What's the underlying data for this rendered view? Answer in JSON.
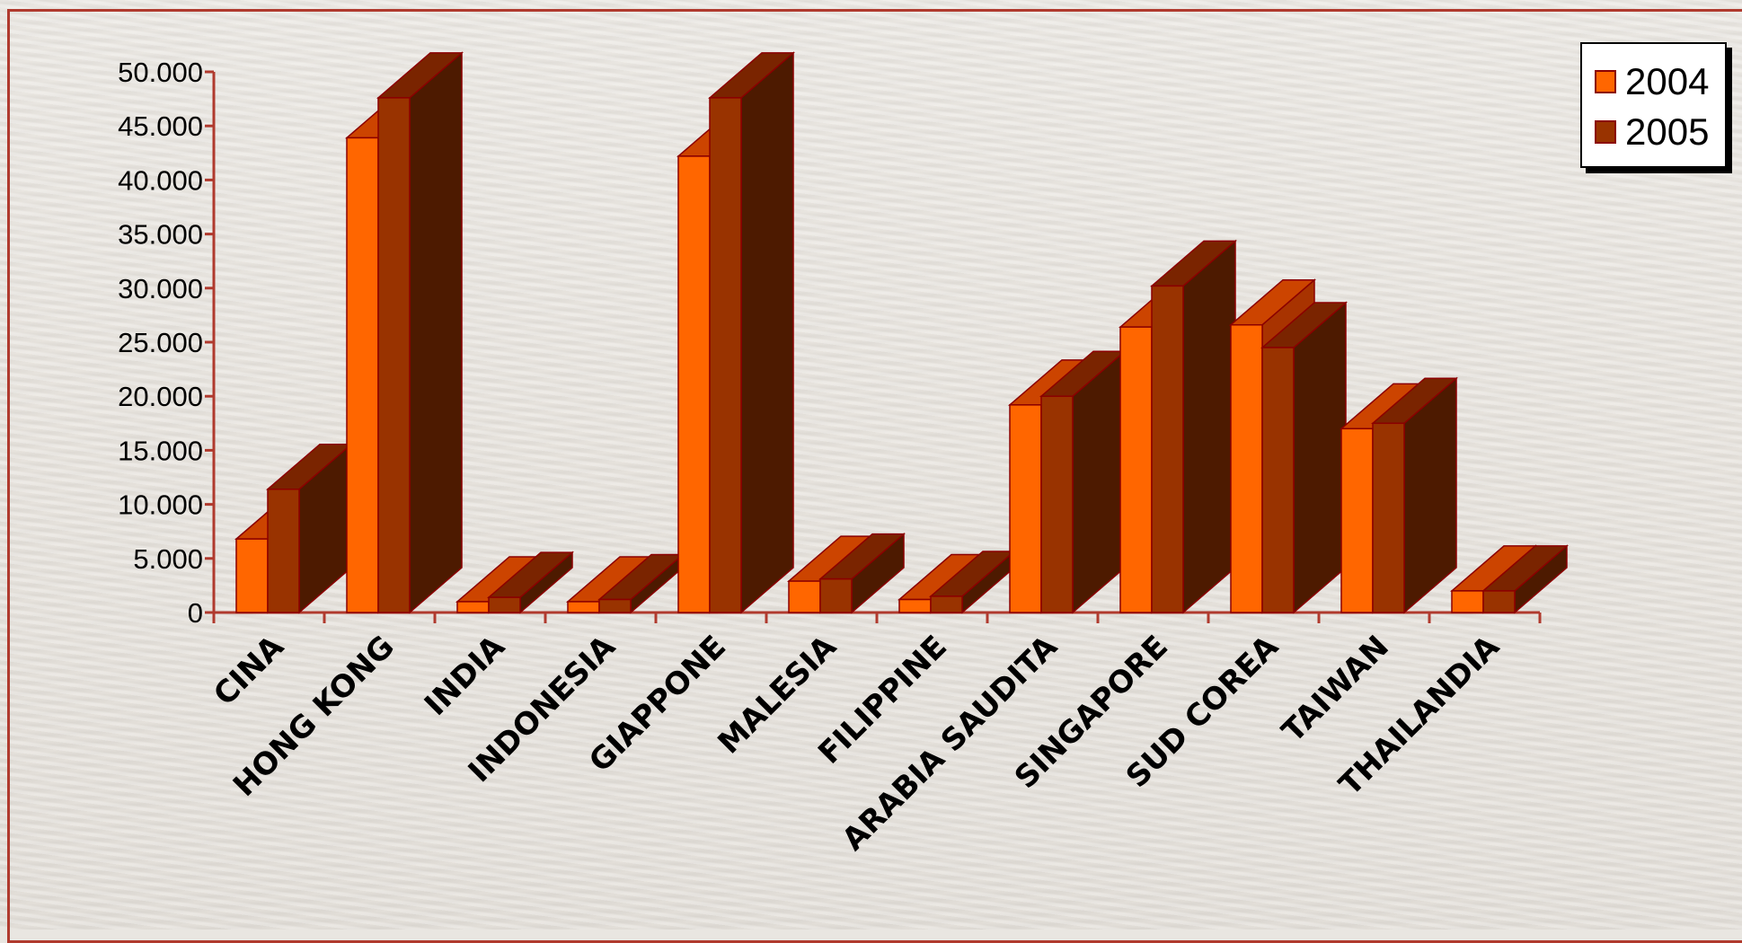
{
  "chart_data": {
    "type": "bar",
    "categories": [
      "CINA",
      "HONG KONG",
      "INDIA",
      "INDONESIA",
      "GIAPPONE",
      "MALESIA",
      "FILIPPINE",
      "ARABIA SAUDITA",
      "SINGAPORE",
      "SUD COREA",
      "TAIWAN",
      "THAILANDIA"
    ],
    "series": [
      {
        "name": "2004",
        "color": "#ff6600",
        "values": [
          6800,
          43900,
          1000,
          1000,
          42200,
          2900,
          1200,
          19200,
          26400,
          26600,
          17000,
          2000
        ]
      },
      {
        "name": "2005",
        "color": "#993300",
        "values": [
          11400,
          47600,
          1400,
          1200,
          47600,
          3100,
          1500,
          20000,
          30200,
          24500,
          17500,
          2000
        ]
      }
    ],
    "y_ticks": [
      "0",
      "5.000",
      "10.000",
      "15.000",
      "20.000",
      "25.000",
      "30.000",
      "35.000",
      "40.000",
      "45.000",
      "50.000"
    ],
    "ylim": [
      0,
      50000
    ],
    "legend_position": "top-right",
    "style": "3d clustered columns",
    "axis_color": "#b03a2e"
  }
}
